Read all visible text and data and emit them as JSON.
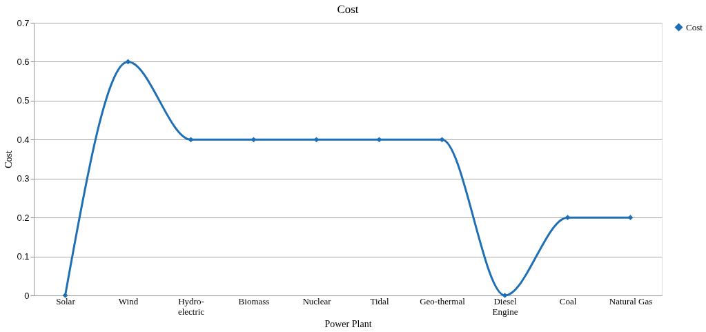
{
  "chart_data": {
    "type": "line",
    "title": "Cost",
    "xlabel": "Power Plant",
    "ylabel": "Cost",
    "categories": [
      "Solar",
      "Wind",
      "Hydro-\nelectric",
      "Biomass",
      "Nuclear",
      "Tidal",
      "Geo-thermal",
      "Diesel\nEngine",
      "Coal",
      "Natural Gas"
    ],
    "series": [
      {
        "name": "Cost",
        "color": "#1f6fb5",
        "values": [
          0,
          0.6,
          0.4,
          0.4,
          0.4,
          0.4,
          0.4,
          0,
          0.2,
          0.2
        ]
      }
    ],
    "ylim": [
      0,
      0.7
    ],
    "yticks": [
      0,
      0.1,
      0.2,
      0.3,
      0.4,
      0.5,
      0.6,
      0.7
    ],
    "grid": "y",
    "legend": "right",
    "marker": "diamond",
    "line_style": "solid"
  }
}
